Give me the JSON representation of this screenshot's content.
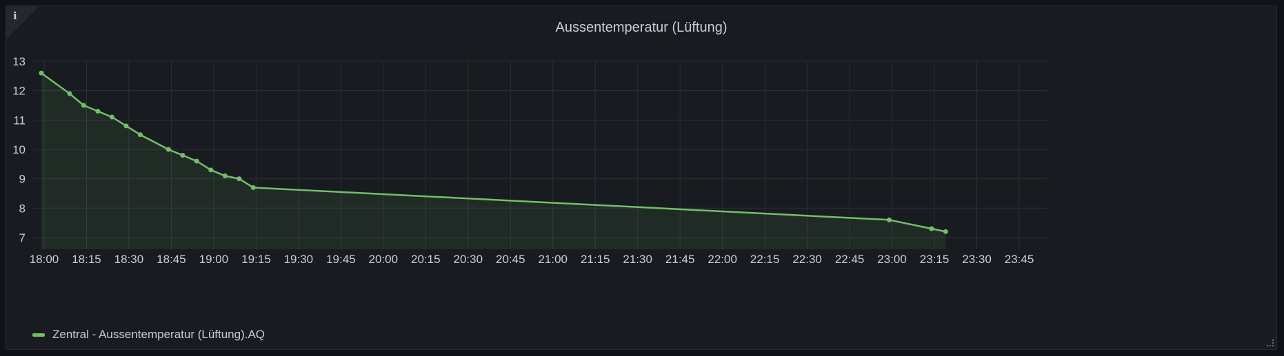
{
  "panel": {
    "title": "Aussentemperatur (Lüftung)",
    "info_icon": "info-icon",
    "resize_icon": "resize-handle-icon"
  },
  "chart_data": {
    "type": "line",
    "title": "Aussentemperatur (Lüftung)",
    "xlabel": "",
    "ylabel": "",
    "xlim": [
      "18:00",
      "23:55"
    ],
    "ylim": [
      6.6,
      13.0
    ],
    "grid": true,
    "legend_position": "bottom-left",
    "x_ticks": [
      "18:00",
      "18:15",
      "18:30",
      "18:45",
      "19:00",
      "19:15",
      "19:30",
      "19:45",
      "20:00",
      "20:15",
      "20:30",
      "20:45",
      "21:00",
      "21:15",
      "21:30",
      "21:45",
      "22:00",
      "22:15",
      "22:30",
      "22:45",
      "23:00",
      "23:15",
      "23:30",
      "23:45"
    ],
    "y_ticks": [
      7,
      8,
      9,
      10,
      11,
      12,
      13
    ],
    "series": [
      {
        "name": "Zentral - Aussentemperatur (Lüftung).AQ",
        "color": "#73bf69",
        "fill": true,
        "x": [
          "17:59",
          "18:09",
          "18:14",
          "18:19",
          "18:24",
          "18:29",
          "18:34",
          "18:44",
          "18:49",
          "18:54",
          "18:59",
          "19:04",
          "19:09",
          "19:14",
          "22:59",
          "23:14",
          "23:19"
        ],
        "values": [
          12.6,
          11.9,
          11.5,
          11.3,
          11.1,
          10.8,
          10.5,
          10.0,
          9.8,
          9.6,
          9.3,
          9.1,
          9.0,
          8.7,
          7.6,
          7.3,
          7.2
        ]
      }
    ]
  }
}
